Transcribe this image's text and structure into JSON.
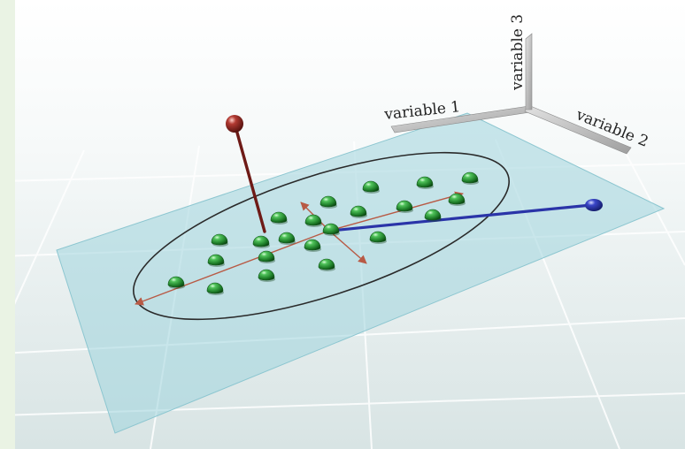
{
  "axes": {
    "x_label": "variable 1",
    "y_label": "variable 2",
    "z_label": "variable 3"
  },
  "colors": {
    "side_strip": "#eaf3e4",
    "floor_top": "#f6f9f9",
    "floor_bottom": "#dbe6e6",
    "floor_grid": "#ffffff",
    "plane_fill": "#9fd3dc",
    "ellipse_stroke": "#2a2a2a",
    "axis_arrow": "#b85a45",
    "points": "#2e9a3a",
    "outlier_red": "#8a2420",
    "outlier_blue": "#2a34a8",
    "axis_rod": "#c9c9c9"
  },
  "icons": {
    "points": "green-sphere",
    "outlier_red": "red-sphere-on-stick",
    "outlier_blue": "blue-sphere-on-rod"
  }
}
